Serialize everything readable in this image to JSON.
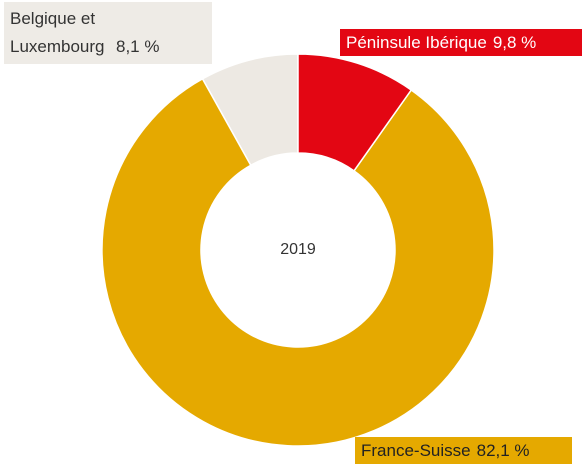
{
  "chart_data": {
    "type": "donut",
    "center_label": "2019",
    "categories": [
      "Péninsule Ibérique",
      "France-Suisse",
      "Belgique et Luxembourg"
    ],
    "values": [
      9.8,
      82.1,
      8.1
    ],
    "value_labels": [
      "9,8 %",
      "82,1 %",
      "8,1 %"
    ],
    "colors": [
      "#e30613",
      "#e5a900",
      "#ede9e3"
    ]
  }
}
